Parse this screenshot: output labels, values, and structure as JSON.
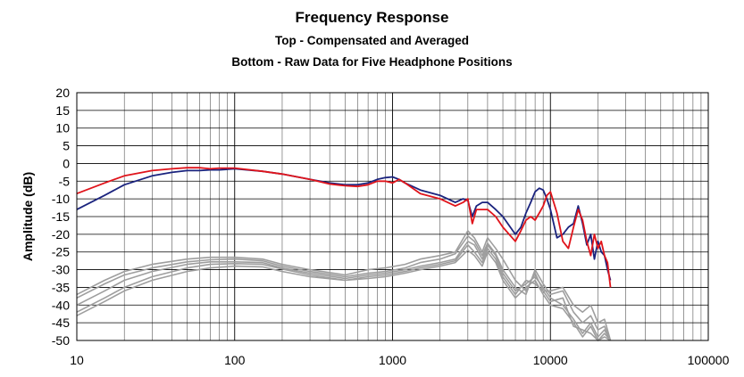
{
  "chart_data": {
    "type": "line",
    "title": "Frequency Response",
    "subtitle_lines": [
      "Top -  Compensated and Averaged",
      "Bottom - Raw Data for Five Headphone Positions"
    ],
    "xlabel": "",
    "ylabel": "Amplitude (dB)",
    "xscale": "log",
    "xlim": [
      10,
      100000
    ],
    "ylim": [
      -50,
      20
    ],
    "y_tick_step": 5,
    "x_tick_labels": [
      "10",
      "100",
      "1000",
      "10000",
      "100000"
    ],
    "x_ticks": [
      10,
      100,
      1000,
      10000,
      100000
    ],
    "grid": true,
    "legend": "none",
    "colors": {
      "compensated_left": "#1a237e",
      "compensated_right": "#e0141b",
      "raw": "#9e9e9e"
    },
    "series": [
      {
        "color": "#1a237e",
        "x": [
          10,
          15,
          20,
          30,
          40,
          50,
          60,
          70,
          80,
          100,
          150,
          200,
          300,
          400,
          500,
          600,
          700,
          800,
          900,
          1000,
          1100,
          1200,
          1500,
          2000,
          2500,
          2800,
          3000,
          3200,
          3400,
          3700,
          4000,
          4500,
          5000,
          6000,
          6500,
          7000,
          7500,
          8000,
          8500,
          9000,
          9500,
          10000,
          11000,
          12000,
          13000,
          14000,
          15000,
          16000,
          17000,
          18000,
          19000,
          20000,
          21000,
          22000,
          23000,
          24000
        ],
        "y": [
          -13,
          -9,
          -6,
          -3.5,
          -2.5,
          -2,
          -2,
          -1.8,
          -1.8,
          -1.5,
          -2.2,
          -3,
          -4.5,
          -5.5,
          -6,
          -6,
          -5.5,
          -4.5,
          -4,
          -3.8,
          -4.5,
          -5.5,
          -7.5,
          -9,
          -11,
          -10,
          -10.5,
          -15,
          -12,
          -11,
          -11,
          -13,
          -15,
          -20,
          -18,
          -14,
          -11,
          -8,
          -7,
          -7.5,
          -10,
          -13,
          -21,
          -20,
          -18,
          -17,
          -12,
          -17,
          -23,
          -20,
          -27,
          -22,
          -25,
          -26,
          -30,
          -33
        ]
      },
      {
        "color": "#e0141b",
        "x": [
          10,
          15,
          20,
          30,
          40,
          50,
          60,
          70,
          80,
          100,
          150,
          200,
          300,
          400,
          500,
          600,
          700,
          800,
          900,
          1000,
          1100,
          1200,
          1500,
          2000,
          2500,
          2800,
          3000,
          3200,
          3400,
          3700,
          4000,
          4500,
          5000,
          6000,
          6500,
          7000,
          7500,
          8000,
          8500,
          9000,
          9500,
          10000,
          11000,
          12000,
          13000,
          14000,
          15000,
          16000,
          17000,
          18000,
          19000,
          20000,
          21000,
          22000,
          23000,
          24000
        ],
        "y": [
          -8.5,
          -5.5,
          -3.5,
          -2,
          -1.5,
          -1.2,
          -1.2,
          -1.5,
          -1.3,
          -1.3,
          -2.2,
          -3,
          -4.5,
          -5.8,
          -6.3,
          -6.5,
          -6,
          -5,
          -5,
          -5.5,
          -4.5,
          -5.5,
          -8.5,
          -10,
          -12,
          -11,
          -10,
          -17,
          -13,
          -13,
          -13,
          -15,
          -18,
          -22,
          -19,
          -16,
          -15,
          -16,
          -14,
          -12,
          -9,
          -8,
          -14,
          -22,
          -24,
          -18,
          -13,
          -16,
          -22,
          -26,
          -20,
          -24,
          -22,
          -26,
          -28,
          -35
        ]
      },
      {
        "color": "#9e9e9e",
        "x": [
          10,
          15,
          20,
          30,
          50,
          70,
          100,
          150,
          200,
          300,
          500,
          700,
          900,
          1200,
          1500,
          2000,
          2500,
          3000,
          3300,
          3700,
          4000,
          4500,
          5000,
          6000,
          7000,
          8000,
          9000,
          10000,
          12000,
          14000,
          16000,
          18000,
          20000,
          22000,
          24000
        ],
        "y": [
          -37,
          -33,
          -30.5,
          -28.5,
          -27,
          -26.5,
          -26.5,
          -27,
          -28.5,
          -30,
          -31.5,
          -30,
          -29.5,
          -28.5,
          -27,
          -26,
          -25,
          -19,
          -21,
          -25,
          -21,
          -24,
          -27,
          -33,
          -36,
          -31,
          -36,
          -36,
          -35,
          -40,
          -42,
          -40,
          -45,
          -44,
          -50
        ]
      },
      {
        "color": "#9e9e9e",
        "x": [
          10,
          15,
          20,
          30,
          50,
          70,
          100,
          150,
          200,
          300,
          500,
          700,
          900,
          1200,
          1500,
          2000,
          2500,
          3000,
          3300,
          3700,
          4000,
          4500,
          5000,
          6000,
          7000,
          8000,
          9000,
          10000,
          12000,
          14000,
          16000,
          18000,
          20000,
          22000,
          24000
        ],
        "y": [
          -38,
          -34,
          -31.5,
          -29.5,
          -27.8,
          -27.2,
          -27,
          -27.5,
          -29,
          -30.5,
          -32,
          -31,
          -30.5,
          -29.5,
          -28,
          -27,
          -25.5,
          -20.5,
          -22,
          -26,
          -22.5,
          -25.5,
          -30,
          -35,
          -37,
          -30,
          -34,
          -37,
          -36,
          -42,
          -45,
          -43,
          -47,
          -46,
          -50
        ]
      },
      {
        "color": "#9e9e9e",
        "x": [
          10,
          15,
          20,
          30,
          50,
          70,
          100,
          150,
          200,
          300,
          500,
          700,
          900,
          1200,
          1500,
          2000,
          2500,
          3000,
          3300,
          3700,
          4000,
          4500,
          5000,
          6000,
          7000,
          8000,
          9000,
          10000,
          12000,
          14000,
          16000,
          18000,
          20000,
          22000,
          24000
        ],
        "y": [
          -40,
          -36,
          -33,
          -30.5,
          -28.5,
          -27.8,
          -27.8,
          -28,
          -29.5,
          -31,
          -32.5,
          -31.5,
          -31,
          -30,
          -29,
          -28,
          -27,
          -22,
          -23,
          -27,
          -23,
          -26,
          -31,
          -36,
          -34,
          -32,
          -35,
          -38,
          -40,
          -44,
          -48,
          -45,
          -49,
          -47,
          -50
        ]
      },
      {
        "color": "#9e9e9e",
        "x": [
          10,
          15,
          20,
          30,
          50,
          70,
          100,
          150,
          200,
          300,
          500,
          700,
          900,
          1200,
          1500,
          2000,
          2500,
          3000,
          3300,
          3700,
          4000,
          4500,
          5000,
          6000,
          7000,
          8000,
          9000,
          10000,
          12000,
          14000,
          16000,
          18000,
          20000,
          22000,
          24000
        ],
        "y": [
          -42,
          -38,
          -35,
          -32,
          -29.5,
          -28.5,
          -28.3,
          -28.5,
          -29.8,
          -31.5,
          -33,
          -32,
          -31.5,
          -30.5,
          -29.5,
          -28.5,
          -27.5,
          -23,
          -25,
          -28,
          -24,
          -27,
          -32,
          -37,
          -33,
          -34,
          -36,
          -39,
          -38,
          -46,
          -47,
          -48,
          -50,
          -48,
          -50
        ]
      },
      {
        "color": "#9e9e9e",
        "x": [
          10,
          15,
          20,
          30,
          50,
          70,
          100,
          150,
          200,
          300,
          500,
          700,
          900,
          1200,
          1500,
          2000,
          2500,
          3000,
          3300,
          3700,
          4000,
          4500,
          5000,
          6000,
          7000,
          8000,
          9000,
          10000,
          12000,
          14000,
          16000,
          18000,
          20000,
          22000,
          24000
        ],
        "y": [
          -43,
          -39,
          -36,
          -33,
          -30.5,
          -29.5,
          -29,
          -29.2,
          -30.5,
          -32,
          -33,
          -32.5,
          -32,
          -31,
          -30,
          -29,
          -28,
          -24.5,
          -26,
          -29,
          -25,
          -28,
          -33,
          -38,
          -35,
          -33,
          -37,
          -40,
          -41,
          -45,
          -49,
          -46,
          -50,
          -49,
          -50
        ]
      }
    ]
  }
}
